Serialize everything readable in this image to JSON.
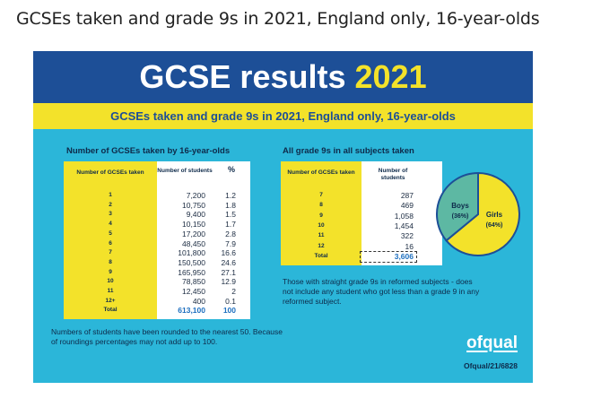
{
  "page_heading": "GCSEs taken and grade 9s in 2021, England only, 16-year-olds",
  "banner": {
    "title_main": "GCSE results ",
    "title_year": "2021"
  },
  "subtitle": "GCSEs taken and grade 9s in 2021, England only, 16-year-olds",
  "left_table": {
    "title": "Number of GCSEs taken by 16-year-olds",
    "headers": {
      "label": "Number of GCSEs taken",
      "count": "Number of students",
      "pct": "%"
    },
    "rows": [
      {
        "label": "1",
        "count": "7,200",
        "pct": "1.2"
      },
      {
        "label": "2",
        "count": "10,750",
        "pct": "1.8"
      },
      {
        "label": "3",
        "count": "9,400",
        "pct": "1.5"
      },
      {
        "label": "4",
        "count": "10,150",
        "pct": "1.7"
      },
      {
        "label": "5",
        "count": "17,200",
        "pct": "2.8"
      },
      {
        "label": "6",
        "count": "48,450",
        "pct": "7.9"
      },
      {
        "label": "7",
        "count": "101,800",
        "pct": "16.6"
      },
      {
        "label": "8",
        "count": "150,500",
        "pct": "24.6"
      },
      {
        "label": "9",
        "count": "165,950",
        "pct": "27.1"
      },
      {
        "label": "10",
        "count": "78,850",
        "pct": "12.9"
      },
      {
        "label": "11",
        "count": "12,450",
        "pct": "2"
      },
      {
        "label": "12+",
        "count": "400",
        "pct": "0.1"
      }
    ],
    "total": {
      "label": "Total",
      "count": "613,100",
      "pct": "100"
    }
  },
  "right_table": {
    "title": "All grade 9s in all subjects taken",
    "headers": {
      "label": "Number of GCSEs taken",
      "count": "Number of students"
    },
    "rows": [
      {
        "label": "7",
        "count": "287"
      },
      {
        "label": "8",
        "count": "469"
      },
      {
        "label": "9",
        "count": "1,058"
      },
      {
        "label": "10",
        "count": "1,454"
      },
      {
        "label": "11",
        "count": "322"
      },
      {
        "label": "12",
        "count": "16"
      }
    ],
    "total": {
      "label": "Total",
      "count": "3,606"
    }
  },
  "pie": {
    "boys": {
      "label": "Boys",
      "pct": "(36%)",
      "value": 36,
      "color": "#5db8a3"
    },
    "girls": {
      "label": "Girls",
      "pct": "(64%)",
      "value": 64,
      "color": "#f3e22a"
    }
  },
  "right_note": "Those with straight grade 9s in reformed subjects - does not include any student who got less than a grade 9 in any reformed subject.",
  "left_note": "Numbers of students have been rounded to the nearest 50. Because of roundings percentages may not add up to 100.",
  "logo": "ofqual",
  "reference": "Ofqual/21/6828",
  "colors": {
    "banner": "#1d4f97",
    "accent_yellow": "#f3e22a",
    "background": "#2bb6d9",
    "total_blue": "#1d6fbf"
  }
}
